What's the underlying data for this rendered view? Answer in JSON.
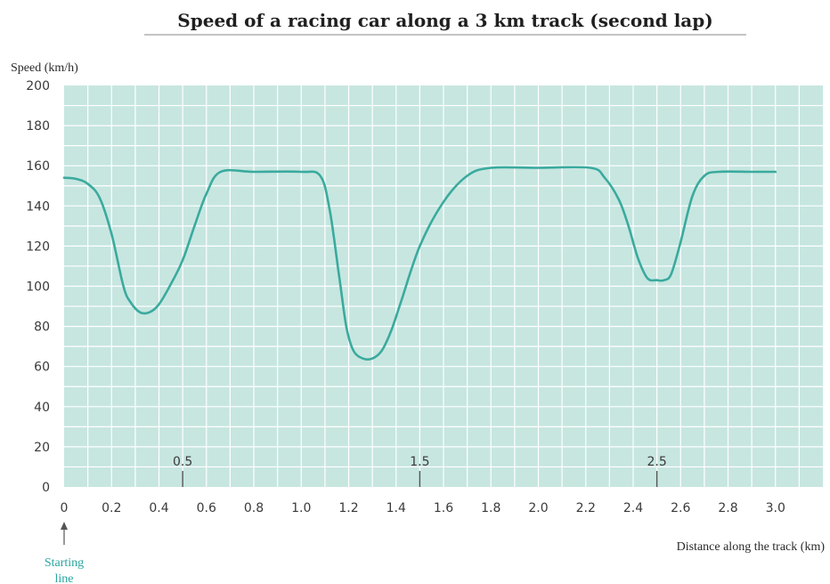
{
  "chart_data": {
    "type": "line",
    "title": "Speed of a racing car along a 3 km track (second lap)",
    "xlabel": "Distance along the track (km)",
    "ylabel": "Speed (km/h)",
    "xlim": [
      0,
      3.2
    ],
    "ylim": [
      0,
      200
    ],
    "x_ticks": [
      0,
      0.2,
      0.4,
      0.6,
      0.8,
      1.0,
      1.2,
      1.4,
      1.6,
      1.8,
      2.0,
      2.2,
      2.4,
      2.6,
      2.8,
      3.0
    ],
    "x_tick_labels": [
      "0",
      "0.2",
      "0.4",
      "0.6",
      "0.8",
      "1.0",
      "1.2",
      "1.4",
      "1.6",
      "1.8",
      "2.0",
      "2.2",
      "2.4",
      "2.6",
      "2.8",
      "3.0"
    ],
    "y_ticks": [
      0,
      20,
      40,
      60,
      80,
      100,
      120,
      140,
      160,
      180,
      200
    ],
    "y_tick_labels": [
      "0",
      "20",
      "40",
      "60",
      "80",
      "100",
      "120",
      "140",
      "160",
      "180",
      "200"
    ],
    "grid": true,
    "annotations": [
      {
        "x": 0.5,
        "text": "0.5"
      },
      {
        "x": 1.5,
        "text": "1.5"
      },
      {
        "x": 2.5,
        "text": "2.5"
      }
    ],
    "start_label": [
      "Starting",
      "line"
    ],
    "colors": {
      "background": "#c7e6e0",
      "grid": "#ffffff",
      "line": "#3aaa9e",
      "start_label": "#2aa6a0"
    },
    "series": [
      {
        "x": [
          0,
          0.05,
          0.1,
          0.15,
          0.2,
          0.25,
          0.28,
          0.32,
          0.36,
          0.4,
          0.45,
          0.5,
          0.55,
          0.6,
          0.66,
          0.8,
          1.0,
          1.08,
          1.12,
          1.16,
          1.19,
          1.22,
          1.26,
          1.3,
          1.34,
          1.38,
          1.42,
          1.5,
          1.6,
          1.7,
          1.8,
          2.0,
          2.22,
          2.28,
          2.34,
          2.38,
          2.42,
          2.46,
          2.5,
          2.53,
          2.56,
          2.6,
          2.65,
          2.7,
          2.76,
          2.9,
          3.0
        ],
        "y": [
          154,
          153.5,
          151,
          144,
          126,
          100,
          92,
          87,
          87,
          91,
          101,
          113,
          130,
          146,
          157,
          157,
          157,
          155,
          138,
          105,
          80,
          68,
          64,
          64,
          68,
          78,
          92,
          120,
          142,
          155,
          159,
          159,
          159,
          154,
          143,
          130,
          114,
          104,
          103,
          103,
          106,
          122,
          145,
          155,
          157,
          157,
          157
        ]
      }
    ]
  }
}
